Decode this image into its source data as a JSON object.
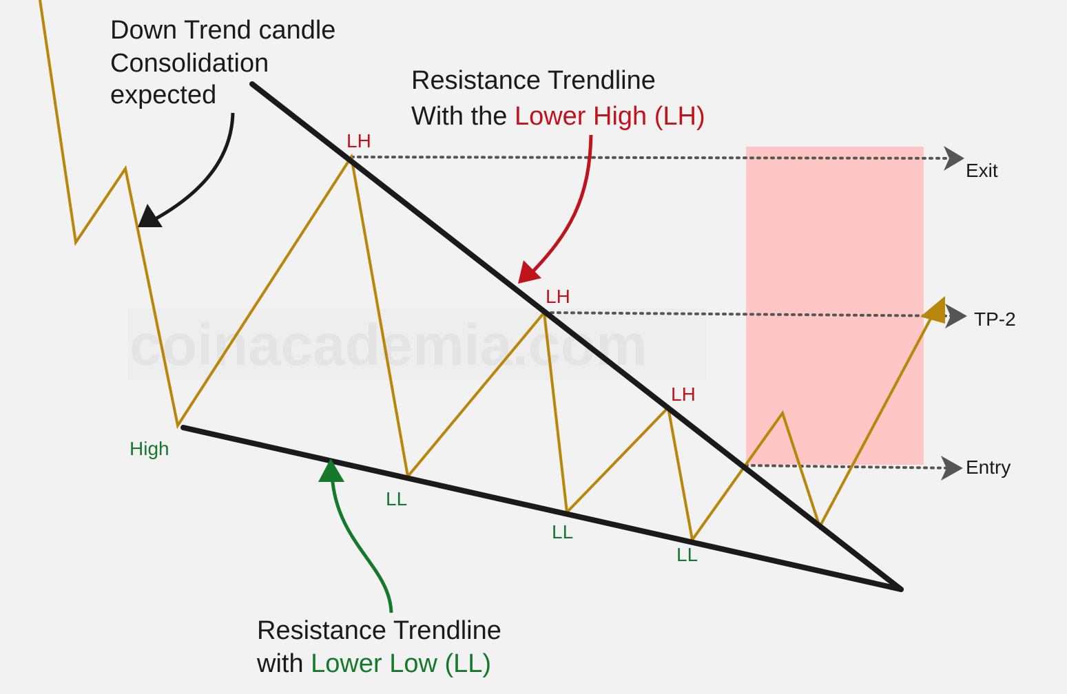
{
  "watermark": "coinacademia.com",
  "notes": {
    "downtrend": [
      "Down Trend candle",
      "Consolidation",
      "expected"
    ],
    "resistance_line1": "Resistance Trendline",
    "resistance_line2_prefix": "With the ",
    "resistance_line2_highlight": "Lower High (LH)",
    "support_line1": "Resistance Trendline",
    "support_line2_prefix": "with ",
    "support_line2_highlight": "Lower Low (LL)"
  },
  "points": {
    "lh": "LH",
    "ll": "LL",
    "high": "High"
  },
  "targets": {
    "exit": "Exit",
    "tp2": "TP-2",
    "entry": "Entry"
  },
  "colors": {
    "background": "#f2f2f2",
    "price": "#b8860b",
    "trendline": "#1a1a1a",
    "zone": "#ffc6c6",
    "lower_high": "#c0141c",
    "lower_low": "#16782a",
    "dotted": "#555555"
  }
}
